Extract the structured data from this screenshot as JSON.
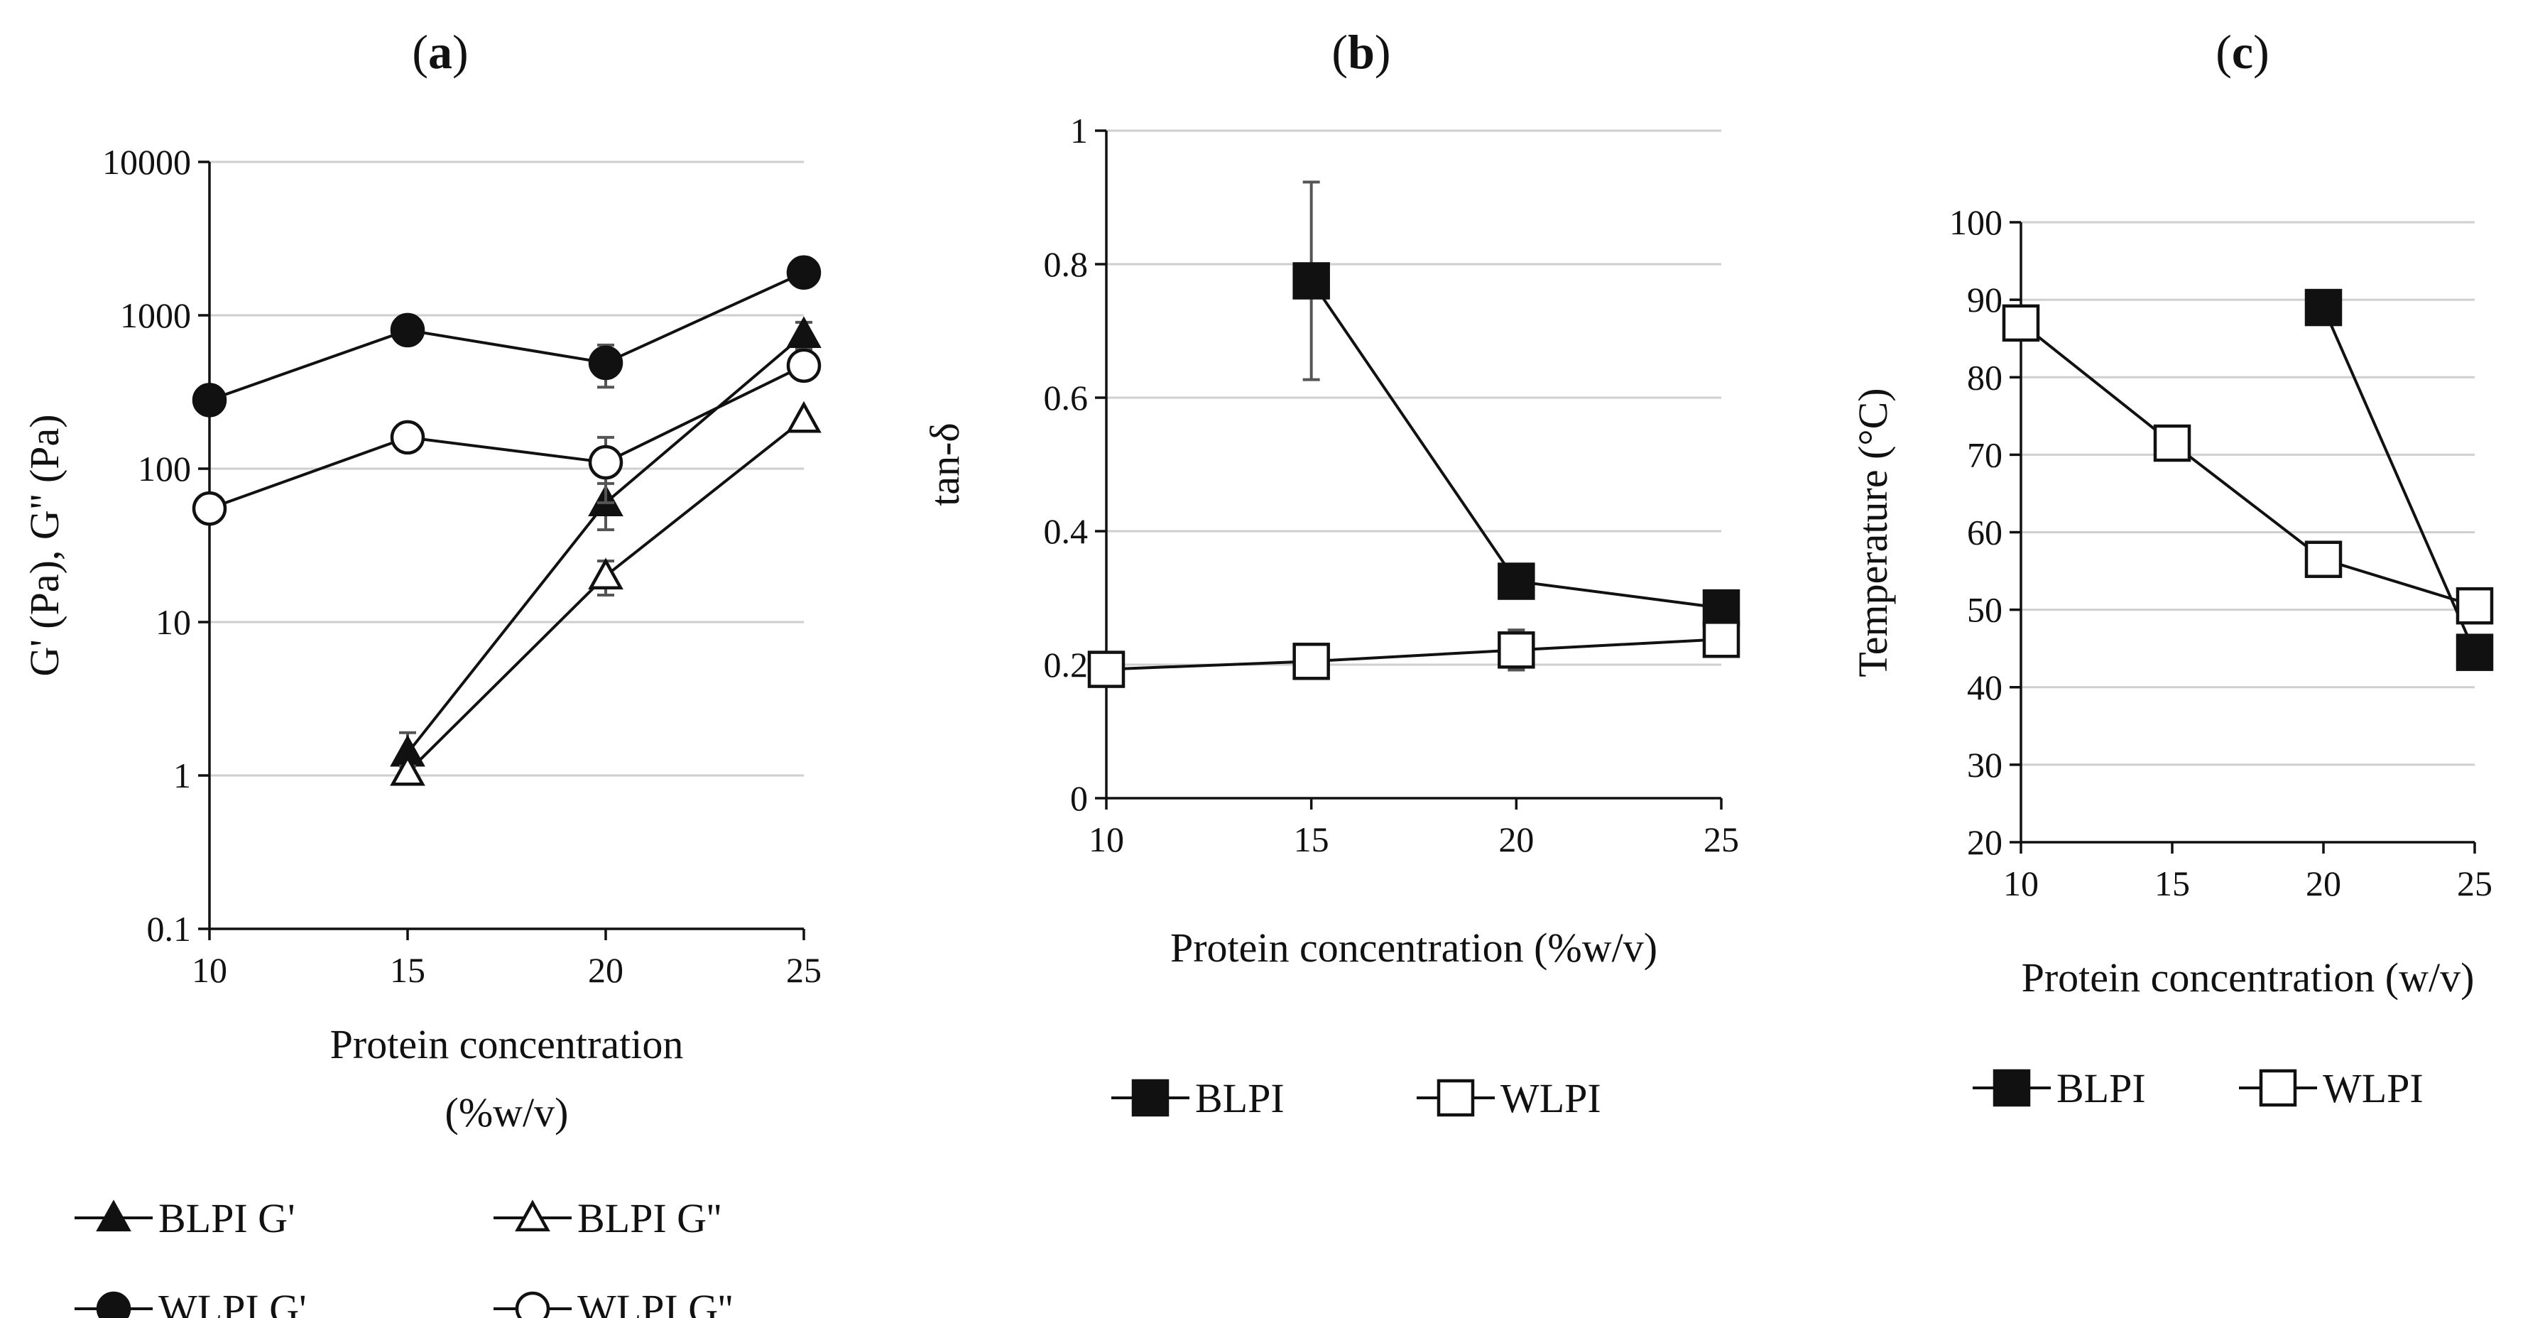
{
  "chart_data": [
    {
      "panel": "(a)",
      "type": "line",
      "yscale": "log",
      "ylabel": "G' (Pa), G\" (Pa)",
      "xlabel_lines": [
        "Protein concentration",
        "(%w/v)"
      ],
      "xlim": [
        10,
        25
      ],
      "ylim": [
        0.1,
        10000
      ],
      "xticks": [
        "10",
        "15",
        "20",
        "25"
      ],
      "yticks": [
        "0.1",
        "1",
        "10",
        "100",
        "1000",
        "10000"
      ],
      "series": [
        {
          "name": "BLPI G'",
          "marker": "triangle",
          "filled": true,
          "x": [
            15,
            20,
            25
          ],
          "values": [
            1.4,
            60,
            750
          ],
          "errors": [
            0.5,
            20,
            150
          ]
        },
        {
          "name": "BLPI G''",
          "marker": "triangle",
          "filled": false,
          "x": [
            15,
            20,
            25
          ],
          "values": [
            1.05,
            20,
            210
          ],
          "errors": [
            0.1,
            5,
            0
          ]
        },
        {
          "name": "WLPI G'",
          "marker": "circle",
          "filled": true,
          "x": [
            10,
            15,
            20,
            25
          ],
          "values": [
            280,
            800,
            490,
            1900
          ],
          "errors": [
            0,
            0,
            150,
            0
          ]
        },
        {
          "name": "WLPI G''",
          "marker": "circle",
          "filled": false,
          "x": [
            10,
            15,
            20,
            25
          ],
          "values": [
            55,
            160,
            110,
            470
          ],
          "errors": [
            0,
            0,
            50,
            0
          ]
        }
      ]
    },
    {
      "panel": "(b)",
      "type": "line",
      "yscale": "linear",
      "ylabel": "tan-δ",
      "xlabel_lines": [
        "Protein concentration  (%w/v)"
      ],
      "xlim": [
        10,
        25
      ],
      "ylim": [
        0,
        1
      ],
      "xticks": [
        "10",
        "15",
        "20",
        "25"
      ],
      "yticks": [
        "0",
        "0.2",
        "0.4",
        "0.6",
        "0.8",
        "1"
      ],
      "series": [
        {
          "name": "BLPI",
          "marker": "square",
          "filled": true,
          "x": [
            15,
            20,
            25
          ],
          "values": [
            0.775,
            0.325,
            0.285
          ],
          "errors": [
            0.148,
            0,
            0
          ]
        },
        {
          "name": "WLPI",
          "marker": "square",
          "filled": false,
          "x": [
            10,
            15,
            20,
            25
          ],
          "values": [
            0.193,
            0.205,
            0.222,
            0.238
          ],
          "errors": [
            0,
            0,
            0.03,
            0
          ]
        }
      ]
    },
    {
      "panel": "(c)",
      "type": "line",
      "yscale": "linear",
      "ylabel": "Temperature (°C)",
      "xlabel_lines": [
        "Protein concentration  (w/v)"
      ],
      "xlim": [
        10,
        25
      ],
      "ylim": [
        20,
        100
      ],
      "xticks": [
        "10",
        "15",
        "20",
        "25"
      ],
      "yticks": [
        "20",
        "30",
        "40",
        "50",
        "60",
        "70",
        "80",
        "90",
        "100"
      ],
      "series": [
        {
          "name": "BLPI",
          "marker": "square",
          "filled": true,
          "x": [
            20,
            25
          ],
          "values": [
            89,
            44.5
          ],
          "errors": [
            0,
            0
          ]
        },
        {
          "name": "WLPI",
          "marker": "square",
          "filled": false,
          "x": [
            10,
            15,
            20,
            25
          ],
          "values": [
            87,
            71.5,
            56.5,
            50.5
          ],
          "errors": [
            0,
            0,
            0,
            0
          ]
        }
      ]
    }
  ]
}
